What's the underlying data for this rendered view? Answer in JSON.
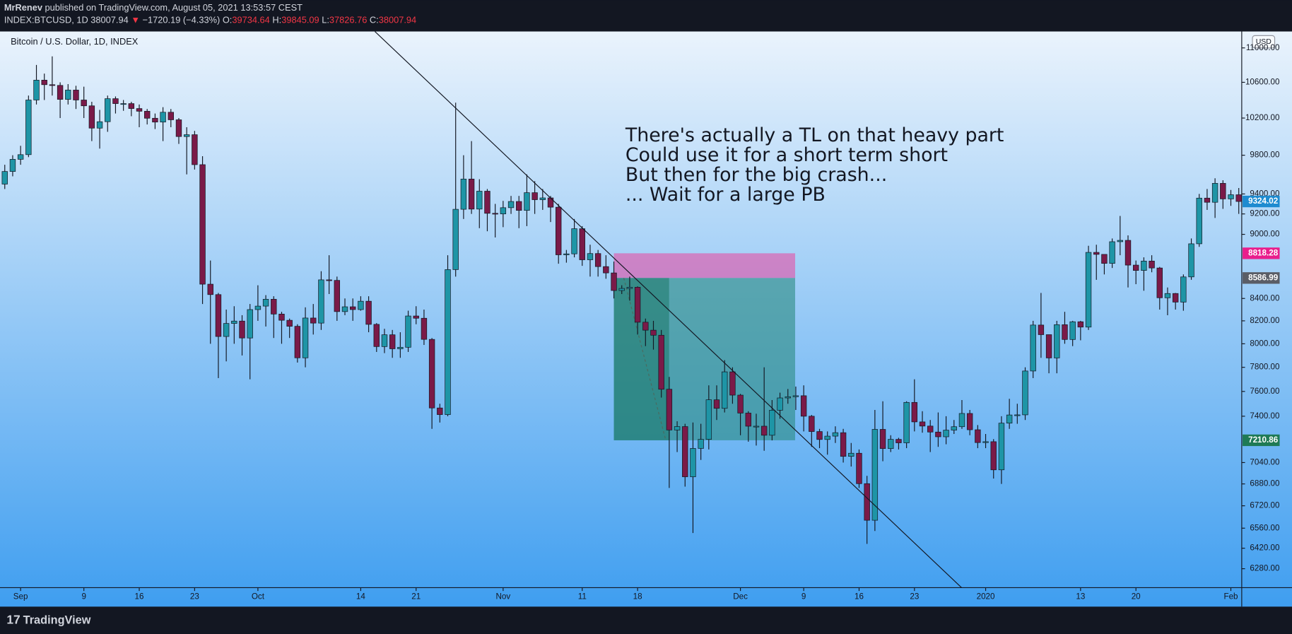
{
  "header": {
    "author": "MrRenev",
    "published": "published on TradingView.com, August 05, 2021 13:53:57 CEST",
    "symbol": "INDEX:BTCUSD, 1D",
    "last": "38007.94",
    "arrow": "▼",
    "change": "−1720.19 (−4.33%)",
    "ohlc": [
      {
        "label": "O:",
        "value": "39734.64"
      },
      {
        "label": "H:",
        "value": "39845.09"
      },
      {
        "label": "L:",
        "value": "37826.76"
      },
      {
        "label": "C:",
        "value": "38007.94"
      }
    ]
  },
  "chart_data": {
    "type": "candlestick",
    "title": "Bitcoin / U.S. Dollar, 1D, INDEX",
    "currency": "USD",
    "categories": [
      null,
      null,
      "Sep",
      null,
      null,
      null,
      null,
      null,
      null,
      null,
      "9",
      null,
      null,
      null,
      null,
      null,
      null,
      "16",
      null,
      null,
      null,
      null,
      null,
      null,
      "23",
      null,
      null,
      null,
      null,
      null,
      null,
      null,
      "Oct",
      null,
      null,
      null,
      null,
      null,
      null,
      null,
      null,
      null,
      null,
      null,
      null,
      "14",
      null,
      null,
      null,
      null,
      null,
      null,
      "21",
      null,
      null,
      null,
      null,
      null,
      null,
      null,
      null,
      null,
      null,
      "Nov",
      null,
      null,
      null,
      null,
      null,
      null,
      null,
      null,
      null,
      "11",
      null,
      null,
      null,
      null,
      null,
      null,
      "18",
      null,
      null,
      null,
      null,
      null,
      null,
      null,
      null,
      null,
      null,
      null,
      null,
      "Dec",
      null,
      null,
      null,
      null,
      null,
      null,
      null,
      "9",
      null,
      null,
      null,
      null,
      null,
      null,
      "16",
      null,
      null,
      null,
      null,
      null,
      null,
      "23",
      null,
      null,
      null,
      null,
      null,
      null,
      null,
      null,
      "2020",
      null,
      null,
      null,
      null,
      null,
      null,
      null,
      null,
      null,
      null,
      null,
      "13",
      null,
      null,
      null,
      null,
      null,
      null,
      "20",
      null,
      null,
      null,
      null,
      null,
      null,
      null,
      null,
      null,
      null,
      null,
      "Feb",
      null
    ],
    "open": [
      9500,
      9630,
      9757,
      9806,
      10400,
      10625,
      10573,
      10565,
      10407,
      10512,
      10400,
      10335,
      10090,
      10160,
      10415,
      10360,
      10360,
      10305,
      10275,
      10198,
      10156,
      10264,
      10181,
      9999,
      10019,
      9701,
      8530,
      8435,
      8063,
      8177,
      8198,
      8050,
      8300,
      8331,
      8393,
      8260,
      8205,
      8152,
      7880,
      8225,
      8180,
      8570,
      8565,
      8282,
      8325,
      8300,
      8375,
      8169,
      7976,
      8078,
      7957,
      7970,
      8243,
      8223,
      8038,
      7466,
      7413,
      8665,
      9246,
      9552,
      9248,
      9428,
      9206,
      9200,
      9262,
      9324,
      9235,
      9413,
      9342,
      9360,
      9267,
      8804,
      8813,
      9055,
      8757,
      8816,
      8693,
      8634,
      8472,
      8491,
      8502,
      8188,
      8118,
      8074,
      7618,
      7291,
      7318,
      6933,
      7148,
      7218,
      7532,
      7463,
      7762,
      7570,
      7425,
      7321,
      7321,
      7250,
      7448,
      7547,
      7557,
      7565,
      7400,
      7279,
      7217,
      7243,
      7270,
      7087,
      7111,
      6882,
      6616,
      7296,
      7147,
      7218,
      7191,
      7511,
      7355,
      7322,
      7275,
      7238,
      7290,
      7317,
      7422,
      7293,
      7193,
      7200,
      6985,
      7345,
      7410,
      7411,
      7769,
      8163,
      8079,
      7879,
      8166,
      8037,
      8192,
      8145,
      8827,
      8808,
      8723,
      8929,
      8942,
      8707,
      8657,
      8745,
      8680,
      8406,
      8445,
      8367,
      8597,
      8909,
      9358,
      9316,
      9508,
      9350,
      9392
    ],
    "high": [
      9700,
      9800,
      9900,
      10450,
      10800,
      10700,
      10900,
      10600,
      10580,
      10560,
      10550,
      10380,
      10290,
      10450,
      10440,
      10400,
      10380,
      10350,
      10300,
      10250,
      10320,
      10300,
      10200,
      10100,
      10060,
      9790,
      8750,
      8450,
      8300,
      8330,
      8250,
      8350,
      8520,
      8430,
      8420,
      8280,
      8220,
      8170,
      8320,
      8350,
      8650,
      8800,
      8600,
      8400,
      8400,
      8420,
      8420,
      8180,
      8130,
      8120,
      8100,
      8290,
      8330,
      8300,
      8050,
      7500,
      8800,
      10370,
      9800,
      9950,
      9550,
      9450,
      9300,
      9330,
      9380,
      9380,
      9600,
      9530,
      9450,
      9380,
      9300,
      8850,
      9150,
      9080,
      8900,
      8850,
      8800,
      8740,
      8520,
      8600,
      8510,
      8220,
      8200,
      8120,
      7720,
      7360,
      7340,
      7350,
      7340,
      7650,
      7650,
      7860,
      7800,
      7580,
      7440,
      7420,
      7800,
      7530,
      7590,
      7620,
      7640,
      7650,
      7410,
      7300,
      7280,
      7320,
      7300,
      7190,
      7140,
      6940,
      7450,
      7520,
      7250,
      7230,
      7520,
      7700,
      7440,
      7370,
      7430,
      7400,
      7370,
      7530,
      7450,
      7330,
      7260,
      7220,
      7400,
      7540,
      7500,
      7800,
      8200,
      8450,
      8080,
      8200,
      8280,
      8200,
      8200,
      8890,
      8900,
      8800,
      8960,
      9180,
      8990,
      8750,
      8780,
      8800,
      8690,
      8500,
      8450,
      8620,
      8960,
      9400,
      9450,
      9560,
      9540,
      9440,
      9460
    ],
    "low": [
      9450,
      9580,
      9700,
      9780,
      10350,
      10400,
      10450,
      10200,
      10350,
      10300,
      10200,
      9950,
      9870,
      10050,
      10250,
      10280,
      10220,
      10100,
      10130,
      10080,
      9950,
      10100,
      9920,
      9600,
      9650,
      8350,
      8000,
      7710,
      7850,
      8000,
      7900,
      7700,
      8200,
      8150,
      8050,
      8000,
      8050,
      7840,
      7800,
      8080,
      8120,
      8440,
      8200,
      8250,
      8200,
      8290,
      8100,
      7930,
      7920,
      7880,
      7880,
      7930,
      8170,
      7990,
      7300,
      7350,
      7400,
      8600,
      9150,
      9200,
      9060,
      9030,
      8970,
      9070,
      9200,
      9060,
      9080,
      9200,
      9240,
      9120,
      8720,
      8730,
      8780,
      8700,
      8600,
      8600,
      8580,
      8400,
      8440,
      8380,
      8080,
      7980,
      7950,
      7550,
      6850,
      7120,
      6860,
      6526,
      7060,
      7140,
      7370,
      7430,
      7500,
      7250,
      7200,
      7170,
      7130,
      7210,
      7380,
      7500,
      7450,
      7280,
      7160,
      7150,
      7100,
      7190,
      7040,
      7010,
      6850,
      6450,
      6540,
      7050,
      7120,
      7140,
      7150,
      7280,
      7270,
      7120,
      7160,
      7180,
      7260,
      7300,
      7250,
      7150,
      7150,
      6920,
      6880,
      7300,
      7340,
      7370,
      7710,
      7880,
      7750,
      7750,
      8000,
      7980,
      8030,
      8120,
      8570,
      8620,
      8680,
      8800,
      8500,
      8530,
      8470,
      8640,
      8300,
      8250,
      8300,
      8290,
      8570,
      8880,
      9240,
      9160,
      9250,
      9280,
      9200
    ],
    "close": [
      9630,
      9757,
      9806,
      10400,
      10625,
      10573,
      10565,
      10407,
      10512,
      10400,
      10335,
      10090,
      10160,
      10415,
      10360,
      10360,
      10305,
      10275,
      10198,
      10156,
      10264,
      10181,
      9999,
      10019,
      9701,
      8530,
      8435,
      8063,
      8177,
      8198,
      8050,
      8300,
      8331,
      8393,
      8260,
      8205,
      8152,
      7880,
      8225,
      8180,
      8570,
      8565,
      8282,
      8325,
      8300,
      8375,
      8169,
      7976,
      8078,
      7957,
      7970,
      8243,
      8223,
      8038,
      7466,
      7413,
      8665,
      9246,
      9552,
      9248,
      9428,
      9206,
      9200,
      9262,
      9324,
      9235,
      9413,
      9342,
      9360,
      9267,
      8804,
      8813,
      9055,
      8757,
      8816,
      8693,
      8634,
      8472,
      8491,
      8502,
      8188,
      8118,
      8074,
      7618,
      7291,
      7318,
      6933,
      7148,
      7218,
      7532,
      7463,
      7762,
      7570,
      7425,
      7321,
      7321,
      7250,
      7448,
      7547,
      7557,
      7565,
      7400,
      7279,
      7217,
      7243,
      7270,
      7087,
      7111,
      6882,
      6616,
      7296,
      7147,
      7218,
      7191,
      7511,
      7355,
      7322,
      7275,
      7238,
      7290,
      7317,
      7422,
      7293,
      7193,
      7200,
      6985,
      7345,
      7410,
      7411,
      7769,
      8163,
      8079,
      7879,
      8166,
      8037,
      8192,
      8145,
      8827,
      8808,
      8723,
      8929,
      8942,
      8707,
      8657,
      8745,
      8680,
      8406,
      8445,
      8367,
      8597,
      8909,
      9358,
      9316,
      9508,
      9350,
      9392,
      9324.02
    ],
    "up_color": "#1e95a6",
    "down_color": "#7a1a48",
    "last_color": "#1e8bd0",
    "ylim": [
      6153,
      11196
    ],
    "log_scale": true,
    "grid": false,
    "yticks": [
      {
        "value": 6280,
        "label": "6280.00"
      },
      {
        "value": 6420,
        "label": "6420.00"
      },
      {
        "value": 6560,
        "label": "6560.00"
      },
      {
        "value": 6720,
        "label": "6720.00"
      },
      {
        "value": 6880,
        "label": "6880.00"
      },
      {
        "value": 7040,
        "label": "7040.00"
      },
      {
        "value": 7400,
        "label": "7400.00"
      },
      {
        "value": 7600,
        "label": "7600.00"
      },
      {
        "value": 7800,
        "label": "7800.00"
      },
      {
        "value": 8000,
        "label": "8000.00"
      },
      {
        "value": 8200,
        "label": "8200.00"
      },
      {
        "value": 8400,
        "label": "8400.00"
      },
      {
        "value": 9000,
        "label": "9000.00"
      },
      {
        "value": 9200,
        "label": "9200.00"
      },
      {
        "value": 9400,
        "label": "9400.00"
      },
      {
        "value": 9800,
        "label": "9800.00"
      },
      {
        "value": 10200,
        "label": "10200.00"
      },
      {
        "value": 10600,
        "label": "10600.00"
      },
      {
        "value": 11000,
        "label": "11000.00"
      }
    ],
    "position": {
      "stop": 8818.28,
      "entry": 8586.99,
      "target": 7210.86,
      "stop_color": "#e91e8c",
      "entry_color": "#5a5d66",
      "target_color": "#1f7a55"
    },
    "annotation": [
      "There's actually a TL on that heavy part",
      "Could use it for a short term short",
      "But then for the big crash...",
      "... Wait for a large PB"
    ]
  },
  "footer": {
    "brand": "TradingView"
  }
}
